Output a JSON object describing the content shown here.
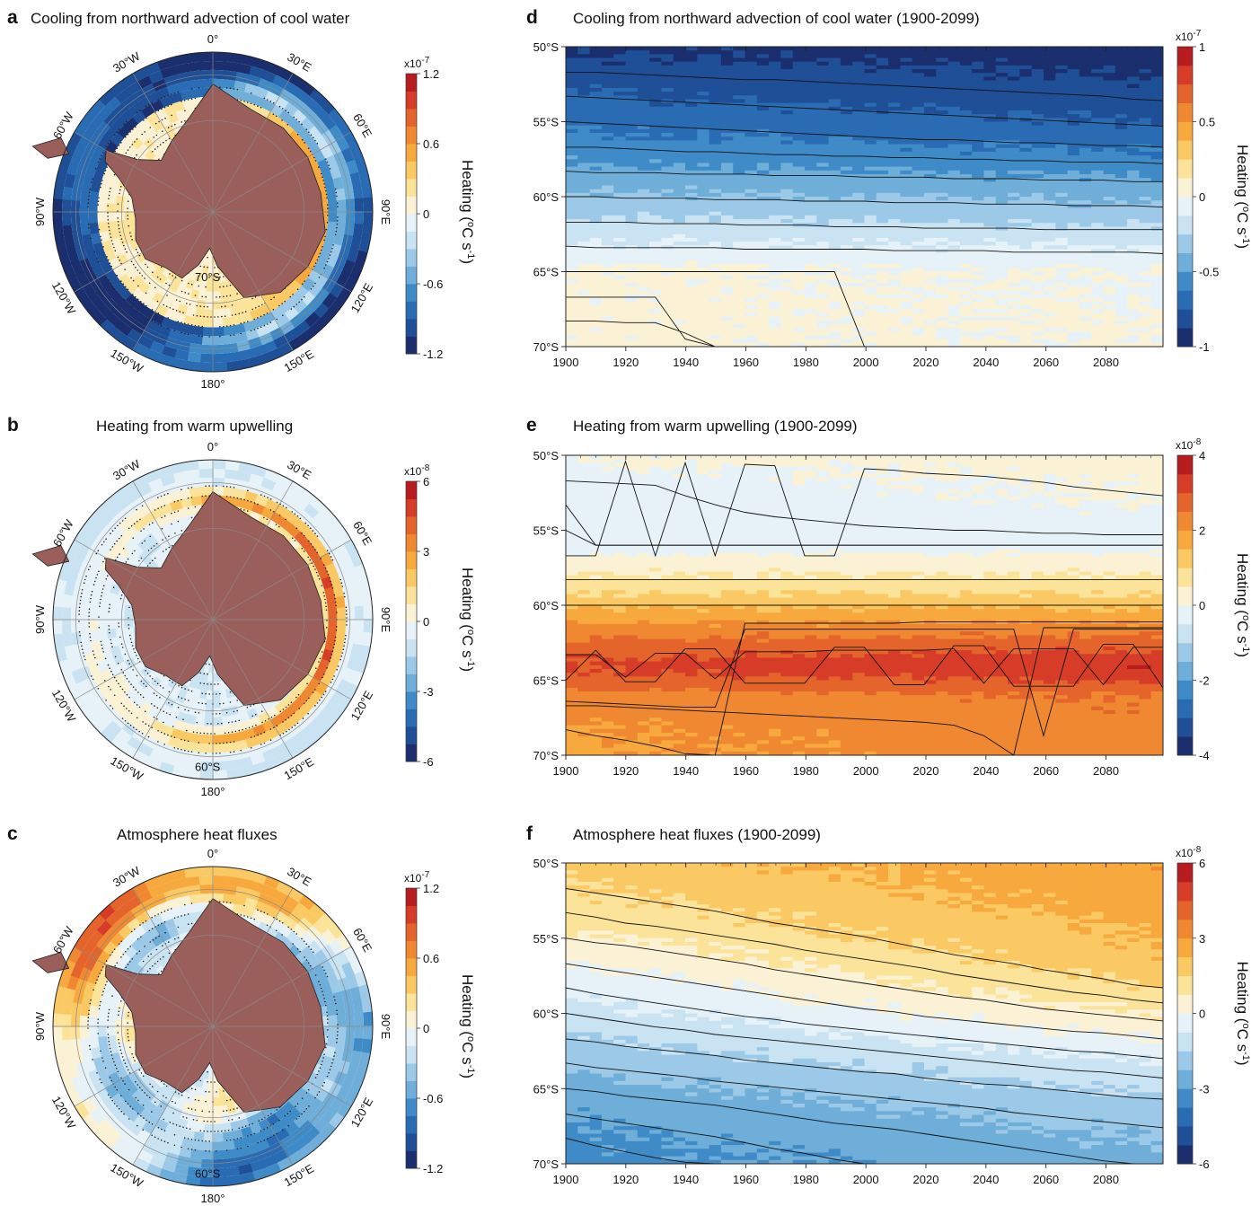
{
  "colors": {
    "land": "#9a5f5b",
    "palette": [
      "#1b2f6e",
      "#1f4f96",
      "#2a6cb3",
      "#3f8bc8",
      "#6eaed9",
      "#9cc9e7",
      "#c9e3f2",
      "#e6f2f8",
      "#fbf2d6",
      "#fce39a",
      "#fbc963",
      "#f7a93e",
      "#ef8830",
      "#e4642b",
      "#d63c27",
      "#b71c1f"
    ]
  },
  "maps": [
    {
      "panel_label": "a",
      "title": "Cooling from northward advection of cool water",
      "cb_multiplier": "x10",
      "cb_exponent": "-7",
      "cb_ticks": [
        "1.2",
        "0.6",
        "0",
        "-0.6",
        "-1.2"
      ],
      "cb_unit": "Heating (",
      "cb_unit_sup": "o",
      "cb_unit_mid": "C s",
      "cb_unit_sup2": "-1",
      "cb_unit_end": ")",
      "lon_labels": [
        "0°",
        "30°E",
        "60°E",
        "90°E",
        "120°E",
        "150°E",
        "180°",
        "150°W",
        "120°W",
        "90°W",
        "60°W",
        "30°W"
      ],
      "lat_label": "70°S",
      "field": "advection"
    },
    {
      "panel_label": "b",
      "title": "Heating from warm upwelling",
      "cb_multiplier": "x10",
      "cb_exponent": "-8",
      "cb_ticks": [
        "6",
        "3",
        "0",
        "-3",
        "-6"
      ],
      "cb_unit": "Heating (",
      "cb_unit_sup": "o",
      "cb_unit_mid": "C s",
      "cb_unit_sup2": "-1",
      "cb_unit_end": ")",
      "lon_labels": [
        "0°",
        "30°E",
        "60°E",
        "90°E",
        "120°E",
        "150°E",
        "180°",
        "150°W",
        "120°W",
        "90°W",
        "60°W",
        "30°W"
      ],
      "lat_label": "60°S",
      "field": "upwelling"
    },
    {
      "panel_label": "c",
      "title": "Atmosphere heat fluxes",
      "cb_multiplier": "x10",
      "cb_exponent": "-7",
      "cb_ticks": [
        "1.2",
        "0.6",
        "0",
        "-0.6",
        "-1.2"
      ],
      "cb_unit": "Heating (",
      "cb_unit_sup": "o",
      "cb_unit_mid": "C s",
      "cb_unit_sup2": "-1",
      "cb_unit_end": ")",
      "lon_labels": [
        "0°",
        "30°E",
        "60°E",
        "90°E",
        "120°E",
        "150°E",
        "180°",
        "150°W",
        "120°W",
        "90°W",
        "60°W",
        "30°W"
      ],
      "lat_label": "60°S",
      "field": "atmosphere"
    }
  ],
  "chart_data": [
    {
      "type": "heatmap",
      "panel_label": "d",
      "title": "Cooling from northward advection of cool water (1900-2099)",
      "x_ticks": [
        "1900",
        "1920",
        "1940",
        "1960",
        "1980",
        "2000",
        "2020",
        "2040",
        "2060",
        "2080"
      ],
      "xlim": [
        1900,
        2099
      ],
      "y_ticks": [
        "50°S",
        "55°S",
        "60°S",
        "65°S",
        "70°S"
      ],
      "ylim": [
        -70,
        -50
      ],
      "cb_ticks": [
        "1",
        "0.5",
        "0",
        "-0.5",
        "-1"
      ],
      "cb_range": [
        -1,
        1
      ],
      "cb_multiplier": "x10",
      "cb_exponent": "-7",
      "cb_unit": "Heating (",
      "cb_unit_sup": "o",
      "cb_unit_mid": "C s",
      "cb_unit_sup2": "-1",
      "cb_unit_end": ")",
      "lat_profile_start": {
        "lat": [
          -50,
          -52,
          -54,
          -56,
          -58,
          -60,
          -62,
          -63,
          -64,
          -65,
          -66,
          -70
        ],
        "value": [
          -0.9,
          -0.8,
          -0.7,
          -0.6,
          -0.5,
          -0.35,
          -0.2,
          -0.12,
          -0.05,
          0.03,
          0.03,
          0.03
        ]
      },
      "lat_profile_end": {
        "lat": [
          -50,
          -52,
          -54,
          -56,
          -58,
          -60,
          -62,
          -63,
          -64,
          -65,
          -66,
          -70
        ],
        "value": [
          -0.95,
          -0.88,
          -0.8,
          -0.7,
          -0.55,
          -0.4,
          -0.25,
          -0.15,
          -0.08,
          0.0,
          -0.02,
          0.02
        ]
      }
    },
    {
      "type": "heatmap",
      "panel_label": "e",
      "title": "Heating from warm upwelling (1900-2099)",
      "x_ticks": [
        "1900",
        "1920",
        "1940",
        "1960",
        "1980",
        "2000",
        "2020",
        "2040",
        "2060",
        "2080"
      ],
      "xlim": [
        1900,
        2099
      ],
      "y_ticks": [
        "50°S",
        "55°S",
        "60°S",
        "65°S",
        "70°S"
      ],
      "ylim": [
        -70,
        -50
      ],
      "cb_ticks": [
        "4",
        "2",
        "0",
        "-2",
        "-4"
      ],
      "cb_range": [
        -4,
        4
      ],
      "cb_multiplier": "x10",
      "cb_exponent": "-8",
      "cb_unit": "Heating (",
      "cb_unit_sup": "o",
      "cb_unit_mid": "C s",
      "cb_unit_sup2": "-1",
      "cb_unit_end": ")",
      "lat_profile_start": {
        "lat": [
          -50,
          -52,
          -56,
          -57,
          -58,
          -59,
          -60,
          -61,
          -62,
          -63,
          -64,
          -65,
          -66,
          -68,
          -70
        ],
        "value": [
          0.1,
          -0.3,
          -0.3,
          0.2,
          0.5,
          0.9,
          1.4,
          1.9,
          2.4,
          2.8,
          3.1,
          2.8,
          2.3,
          2.0,
          1.9
        ]
      },
      "lat_profile_end": {
        "lat": [
          -50,
          -52,
          -56,
          -57,
          -58,
          -59,
          -60,
          -61,
          -62,
          -63,
          -64,
          -65,
          -66,
          -68,
          -70
        ],
        "value": [
          0.2,
          0.1,
          -0.3,
          0.2,
          0.5,
          0.9,
          1.4,
          1.9,
          2.5,
          3.0,
          3.5,
          3.1,
          2.5,
          2.3,
          2.3
        ]
      }
    },
    {
      "type": "heatmap",
      "panel_label": "f",
      "title": "Atmosphere heat fluxes (1900-2099)",
      "x_ticks": [
        "1900",
        "1920",
        "1940",
        "1960",
        "1980",
        "2000",
        "2020",
        "2040",
        "2060",
        "2080"
      ],
      "xlim": [
        1900,
        2099
      ],
      "y_ticks": [
        "50°S",
        "55°S",
        "60°S",
        "65°S",
        "70°S"
      ],
      "ylim": [
        -70,
        -50
      ],
      "cb_ticks": [
        "6",
        "3",
        "0",
        "-3",
        "-6"
      ],
      "cb_range": [
        -6,
        6
      ],
      "cb_multiplier": "x10",
      "cb_exponent": "-8",
      "cb_unit": "Heating (",
      "cb_unit_sup": "o",
      "cb_unit_mid": "C s",
      "cb_unit_sup2": "-1",
      "cb_unit_end": ")",
      "lat_profile_start": {
        "lat": [
          -50,
          -52,
          -54,
          -56,
          -58,
          -60,
          -62,
          -64,
          -66,
          -68,
          -70
        ],
        "value": [
          1.8,
          1.4,
          0.9,
          0.2,
          -0.5,
          -1.1,
          -1.7,
          -2.3,
          -2.8,
          -3.1,
          -3.3
        ]
      },
      "lat_profile_end": {
        "lat": [
          -50,
          -52,
          -54,
          -56,
          -58,
          -60,
          -62,
          -64,
          -66,
          -68,
          -70
        ],
        "value": [
          2.9,
          2.7,
          2.5,
          2.2,
          1.6,
          0.8,
          -0.2,
          -1.0,
          -1.7,
          -2.2,
          -2.5
        ]
      }
    }
  ]
}
